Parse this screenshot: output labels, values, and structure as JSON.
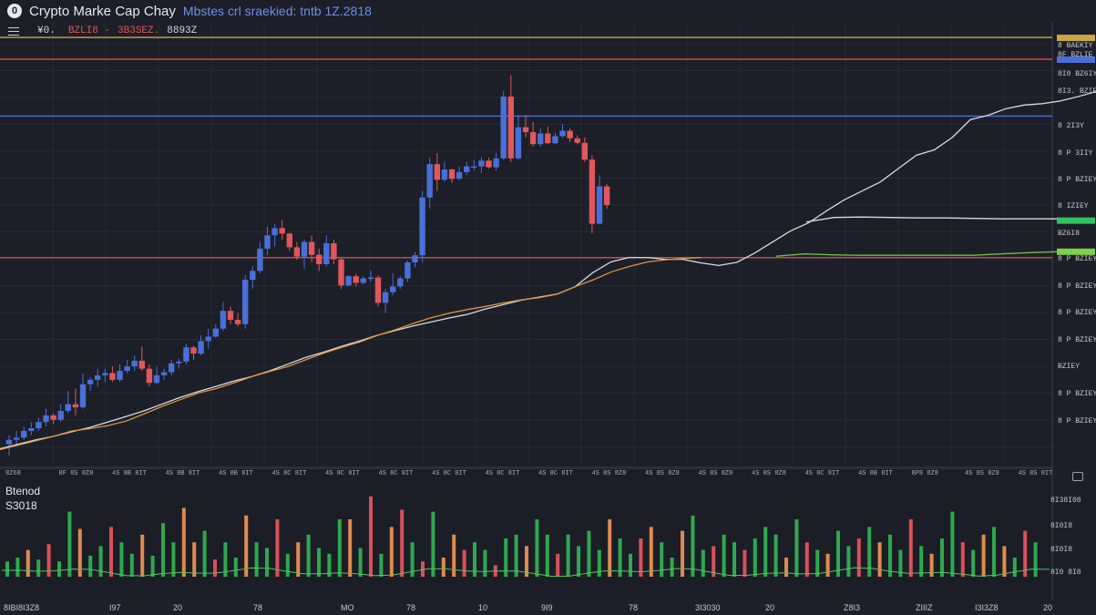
{
  "header": {
    "logo_glyph": "0",
    "title": "Crypto Marke Cap Chay",
    "subtitle": "Mbstes crl sraekied: tntb 1Z.2818"
  },
  "ohlc": {
    "a": "¥0.",
    "b": "BZLI8 -",
    "c": "3B3SEZ.",
    "d": "8893Z"
  },
  "volume_panel": {
    "label": "Btenod",
    "value": "S3018"
  },
  "colors": {
    "background": "#1c1f28",
    "up_candle": "#4a6fd8",
    "down_candle": "#e0575c",
    "ma_white": "#d9d9df",
    "ma_orange": "#d8924a",
    "ma_green": "#6fbf4a",
    "hline_red": "#e0443f",
    "hline_blue": "#4a6fd8",
    "hline_gold": "#c9a84a",
    "vol_green": "#2fa84f",
    "vol_red": "#d9505a",
    "vol_orange": "#e08a50"
  },
  "chart_data": {
    "type": "candlestick",
    "price_axis_ticks": [
      "8 BAEKIY",
      "8F BZLIE",
      "8I0 BZ6IY",
      "8I3. BZIEY",
      "8 2I3Y",
      "8 P 3IIY",
      "8 P BZIEY",
      "8 IZIEY",
      "BZ6I8",
      "8 P BZIEY",
      "8 P BZIEY",
      "8 P BZIEY",
      "8 P BZIEY",
      "BZIEY",
      "8 P BZIEY",
      "8 P BZIEY"
    ],
    "time_axis_ticks": [
      "8Z68",
      "8F 8S 8Z8",
      "4S 8B 8IT",
      "4S 8B 8IT",
      "4S 8B 8IT",
      "4S 8C 8IT",
      "4S 8C 8IT",
      "4S 8C 8IT",
      "4S 8C 8IT",
      "4S 8C 8IT",
      "4S 8C 8IT",
      "4S 8S 8Z8",
      "4S 8S 8Z8",
      "4S 8S 8Z8",
      "4S 8S 8Z8",
      "4S 8C 8IT",
      "4S 8B 8IT",
      "8P8 8Z8",
      "4S 8S 8Z8",
      "4S 8S 8IT"
    ],
    "bottom_axis_ticks": [
      "8IBI8I3Z8",
      "I97",
      "20",
      "78",
      "MO",
      "78",
      "10",
      "9I9",
      "78",
      "3I3030",
      "20",
      "Z8I3",
      "ZIIIZ",
      "I3I3Z8",
      "20"
    ],
    "volume_axis_ticks": [
      "8I38I08",
      "8I0I8",
      "8I0I8",
      "8I0 8I8"
    ],
    "y_range": [
      0,
      100
    ],
    "candles": [
      {
        "o": 5,
        "h": 7,
        "l": 2.5,
        "c": 6
      },
      {
        "o": 6,
        "h": 8,
        "l": 5,
        "c": 6.5
      },
      {
        "o": 6.5,
        "h": 9,
        "l": 6,
        "c": 8
      },
      {
        "o": 8,
        "h": 10,
        "l": 7,
        "c": 8.6
      },
      {
        "o": 8.6,
        "h": 11,
        "l": 8,
        "c": 10
      },
      {
        "o": 10,
        "h": 13,
        "l": 9,
        "c": 11.5
      },
      {
        "o": 11.5,
        "h": 12,
        "l": 9.5,
        "c": 10.5
      },
      {
        "o": 10.5,
        "h": 14,
        "l": 10,
        "c": 12.5
      },
      {
        "o": 12.5,
        "h": 17,
        "l": 12,
        "c": 14
      },
      {
        "o": 14,
        "h": 17.5,
        "l": 11.5,
        "c": 13.3
      },
      {
        "o": 13.3,
        "h": 21,
        "l": 13,
        "c": 18.5
      },
      {
        "o": 18.5,
        "h": 20,
        "l": 17,
        "c": 19.5
      },
      {
        "o": 19.5,
        "h": 22,
        "l": 18,
        "c": 20.5
      },
      {
        "o": 20.5,
        "h": 22,
        "l": 19,
        "c": 21
      },
      {
        "o": 21,
        "h": 22.5,
        "l": 19,
        "c": 19.5
      },
      {
        "o": 19.5,
        "h": 23,
        "l": 19,
        "c": 21.5
      },
      {
        "o": 21.5,
        "h": 24,
        "l": 21,
        "c": 22.5
      },
      {
        "o": 22.5,
        "h": 25,
        "l": 21.5,
        "c": 23.8
      },
      {
        "o": 23.8,
        "h": 27,
        "l": 21.5,
        "c": 22
      },
      {
        "o": 22,
        "h": 23,
        "l": 18,
        "c": 18.8
      },
      {
        "o": 18.8,
        "h": 22.5,
        "l": 18.5,
        "c": 20.5
      },
      {
        "o": 20.5,
        "h": 22,
        "l": 19.5,
        "c": 21.2
      },
      {
        "o": 21.2,
        "h": 24,
        "l": 20.5,
        "c": 23.2
      },
      {
        "o": 23.2,
        "h": 24.2,
        "l": 22,
        "c": 23.6
      },
      {
        "o": 23.6,
        "h": 27.5,
        "l": 23,
        "c": 26.8
      },
      {
        "o": 26.8,
        "h": 27.2,
        "l": 24,
        "c": 25.4
      },
      {
        "o": 25.4,
        "h": 29.5,
        "l": 25,
        "c": 28.2
      },
      {
        "o": 28.2,
        "h": 31,
        "l": 26.5,
        "c": 29.2
      },
      {
        "o": 29.2,
        "h": 32,
        "l": 29,
        "c": 31
      },
      {
        "o": 31,
        "h": 37,
        "l": 30.5,
        "c": 35
      },
      {
        "o": 35,
        "h": 36,
        "l": 32,
        "c": 33
      },
      {
        "o": 33,
        "h": 34.5,
        "l": 31.5,
        "c": 32
      },
      {
        "o": 32,
        "h": 43,
        "l": 31,
        "c": 42
      },
      {
        "o": 42,
        "h": 45,
        "l": 40,
        "c": 44
      },
      {
        "o": 44,
        "h": 50.5,
        "l": 43.5,
        "c": 49
      },
      {
        "o": 49,
        "h": 54,
        "l": 47.5,
        "c": 52
      },
      {
        "o": 52,
        "h": 54.5,
        "l": 49.5,
        "c": 53.6
      },
      {
        "o": 53.6,
        "h": 55.5,
        "l": 51,
        "c": 52.4
      },
      {
        "o": 52.4,
        "h": 52.5,
        "l": 48.5,
        "c": 49.3
      },
      {
        "o": 49.3,
        "h": 50.5,
        "l": 46.5,
        "c": 47.2
      },
      {
        "o": 47.2,
        "h": 51,
        "l": 44.5,
        "c": 50.5
      },
      {
        "o": 50.5,
        "h": 52,
        "l": 46,
        "c": 47.6
      },
      {
        "o": 47.6,
        "h": 49,
        "l": 44,
        "c": 45.5
      },
      {
        "o": 45.5,
        "h": 52,
        "l": 45,
        "c": 50.2
      },
      {
        "o": 50.2,
        "h": 51,
        "l": 45.5,
        "c": 46.6
      },
      {
        "o": 46.6,
        "h": 46.8,
        "l": 40,
        "c": 40.7
      },
      {
        "o": 40.7,
        "h": 43,
        "l": 40.5,
        "c": 42.8
      },
      {
        "o": 42.8,
        "h": 43.3,
        "l": 40.5,
        "c": 41.3
      },
      {
        "o": 41.3,
        "h": 42.8,
        "l": 41,
        "c": 42.3
      },
      {
        "o": 42.3,
        "h": 44,
        "l": 41.5,
        "c": 42.5
      },
      {
        "o": 42.5,
        "h": 43,
        "l": 36,
        "c": 36.8
      },
      {
        "o": 36.8,
        "h": 40,
        "l": 34.5,
        "c": 39.2
      },
      {
        "o": 39.2,
        "h": 43.5,
        "l": 38.5,
        "c": 40.5
      },
      {
        "o": 40.5,
        "h": 42.8,
        "l": 40,
        "c": 42.3
      },
      {
        "o": 42.3,
        "h": 46.3,
        "l": 41.5,
        "c": 45.9
      },
      {
        "o": 45.9,
        "h": 48.2,
        "l": 44.8,
        "c": 47.5
      },
      {
        "o": 47.5,
        "h": 62,
        "l": 46,
        "c": 60.5
      },
      {
        "o": 60.5,
        "h": 69.5,
        "l": 58,
        "c": 68
      },
      {
        "o": 68,
        "h": 70.5,
        "l": 62,
        "c": 64.5
      },
      {
        "o": 64.5,
        "h": 68.5,
        "l": 64,
        "c": 66.8
      },
      {
        "o": 66.8,
        "h": 67,
        "l": 63.8,
        "c": 64.7
      },
      {
        "o": 64.7,
        "h": 67.5,
        "l": 64.5,
        "c": 66.2
      },
      {
        "o": 66.2,
        "h": 68.5,
        "l": 65.5,
        "c": 67.5
      },
      {
        "o": 67.5,
        "h": 69,
        "l": 66.5,
        "c": 67.5
      },
      {
        "o": 67.5,
        "h": 69.5,
        "l": 66,
        "c": 68.8
      },
      {
        "o": 68.8,
        "h": 69.5,
        "l": 67,
        "c": 67.3
      },
      {
        "o": 67.3,
        "h": 70.5,
        "l": 66.5,
        "c": 69.3
      },
      {
        "o": 69.3,
        "h": 84.5,
        "l": 69,
        "c": 83.2
      },
      {
        "o": 83.2,
        "h": 88,
        "l": 68.5,
        "c": 69.3
      },
      {
        "o": 69.3,
        "h": 79,
        "l": 69,
        "c": 76.3
      },
      {
        "o": 76.3,
        "h": 79,
        "l": 74,
        "c": 75.2
      },
      {
        "o": 75.2,
        "h": 77.5,
        "l": 72,
        "c": 72.5
      },
      {
        "o": 72.5,
        "h": 76,
        "l": 72,
        "c": 74.9
      },
      {
        "o": 74.9,
        "h": 76.5,
        "l": 72.5,
        "c": 72.7
      },
      {
        "o": 72.7,
        "h": 75,
        "l": 72.5,
        "c": 74.3
      },
      {
        "o": 74.3,
        "h": 77,
        "l": 74,
        "c": 75.5
      },
      {
        "o": 75.5,
        "h": 76,
        "l": 73,
        "c": 73.8
      },
      {
        "o": 73.8,
        "h": 74.5,
        "l": 72.5,
        "c": 72.8
      },
      {
        "o": 72.8,
        "h": 74,
        "l": 68.5,
        "c": 69
      },
      {
        "o": 69,
        "h": 70,
        "l": 52.5,
        "c": 54.6
      },
      {
        "o": 54.6,
        "h": 65.5,
        "l": 54.5,
        "c": 63
      },
      {
        "o": 63,
        "h": 63.5,
        "l": 58,
        "c": 58.8
      }
    ],
    "moving_averages": [
      {
        "color": "white",
        "values": [
          4,
          5,
          6,
          6.8,
          7.8,
          8.8,
          10,
          11.2,
          12.5,
          14,
          15.5,
          16.8,
          18,
          19.2,
          20.2,
          21.5,
          23,
          24.5,
          25.7,
          27,
          28.2,
          29.5,
          30.6,
          31.6,
          32.5,
          33.4,
          34.2,
          35.4,
          36.4,
          37.4,
          38.1,
          38.8,
          40.4,
          43.6,
          46,
          47,
          47,
          46.6,
          46.6,
          45.8,
          45.2,
          45.9,
          48,
          50.5,
          53,
          54.8,
          57.5,
          60,
          62,
          64,
          67,
          70,
          71.2,
          74,
          78,
          79,
          80.5,
          81.3,
          81.6,
          82.2,
          83.2,
          84.3
        ]
      },
      {
        "color": "orange",
        "values": [
          3.8,
          4.8,
          5.8,
          6.8,
          8,
          8.5,
          9.2,
          10.2,
          11.8,
          13.5,
          15,
          16.5,
          17.5,
          18.8,
          20.2,
          21.4,
          22.5,
          24,
          25.5,
          26.8,
          28,
          29.5,
          30.8,
          32.2,
          33.5,
          34.5,
          35.3,
          36,
          36.8,
          37.5,
          38,
          38.8,
          40.5,
          42,
          43.8,
          45,
          46,
          46.5,
          46.8,
          47
        ]
      },
      {
        "color": "green",
        "values": [
          47.3,
          47.8,
          47.6,
          47.5,
          47.5,
          47.5,
          47.5,
          47.5,
          47.8,
          48.1,
          48.3
        ]
      },
      {
        "color": "white-flat",
        "values": [
          55,
          56,
          56.1,
          56,
          55.9,
          55.9,
          55.8,
          55.7,
          55.7,
          55.7
        ]
      }
    ],
    "horizontal_lines": [
      {
        "color": "gold",
        "value": 96.5
      },
      {
        "color": "red",
        "value": 91.6
      },
      {
        "color": "blue",
        "value": 78.8
      },
      {
        "color": "red",
        "value": 47.0
      }
    ],
    "volumes": [
      {
        "v": 8,
        "c": "green"
      },
      {
        "v": 10,
        "c": "green"
      },
      {
        "v": 14,
        "c": "orange"
      },
      {
        "v": 9,
        "c": "green"
      },
      {
        "v": 17,
        "c": "red"
      },
      {
        "v": 8,
        "c": "green"
      },
      {
        "v": 34,
        "c": "green"
      },
      {
        "v": 25,
        "c": "orange"
      },
      {
        "v": 11,
        "c": "green"
      },
      {
        "v": 16,
        "c": "green"
      },
      {
        "v": 26,
        "c": "red"
      },
      {
        "v": 18,
        "c": "green"
      },
      {
        "v": 12,
        "c": "green"
      },
      {
        "v": 22,
        "c": "orange"
      },
      {
        "v": 11,
        "c": "green"
      },
      {
        "v": 28,
        "c": "green"
      },
      {
        "v": 18,
        "c": "green"
      },
      {
        "v": 36,
        "c": "orange"
      },
      {
        "v": 18,
        "c": "orange"
      },
      {
        "v": 24,
        "c": "green"
      },
      {
        "v": 9,
        "c": "red"
      },
      {
        "v": 18,
        "c": "green"
      },
      {
        "v": 10,
        "c": "green"
      },
      {
        "v": 32,
        "c": "orange"
      },
      {
        "v": 18,
        "c": "green"
      },
      {
        "v": 15,
        "c": "green"
      },
      {
        "v": 30,
        "c": "red"
      },
      {
        "v": 12,
        "c": "green"
      },
      {
        "v": 18,
        "c": "orange"
      },
      {
        "v": 22,
        "c": "green"
      },
      {
        "v": 15,
        "c": "green"
      },
      {
        "v": 12,
        "c": "green"
      },
      {
        "v": 30,
        "c": "green"
      },
      {
        "v": 30,
        "c": "orange"
      },
      {
        "v": 15,
        "c": "green"
      },
      {
        "v": 42,
        "c": "red"
      },
      {
        "v": 12,
        "c": "green"
      },
      {
        "v": 26,
        "c": "orange"
      },
      {
        "v": 35,
        "c": "red"
      },
      {
        "v": 18,
        "c": "green"
      },
      {
        "v": 8,
        "c": "red"
      },
      {
        "v": 34,
        "c": "green"
      },
      {
        "v": 10,
        "c": "orange"
      },
      {
        "v": 22,
        "c": "orange"
      },
      {
        "v": 14,
        "c": "red"
      },
      {
        "v": 18,
        "c": "green"
      },
      {
        "v": 14,
        "c": "green"
      },
      {
        "v": 6,
        "c": "red"
      },
      {
        "v": 20,
        "c": "green"
      },
      {
        "v": 22,
        "c": "green"
      },
      {
        "v": 16,
        "c": "orange"
      },
      {
        "v": 30,
        "c": "green"
      },
      {
        "v": 22,
        "c": "green"
      },
      {
        "v": 12,
        "c": "red"
      },
      {
        "v": 22,
        "c": "green"
      },
      {
        "v": 16,
        "c": "green"
      },
      {
        "v": 24,
        "c": "green"
      },
      {
        "v": 14,
        "c": "green"
      },
      {
        "v": 30,
        "c": "orange"
      },
      {
        "v": 20,
        "c": "green"
      },
      {
        "v": 12,
        "c": "green"
      },
      {
        "v": 20,
        "c": "red"
      },
      {
        "v": 26,
        "c": "orange"
      },
      {
        "v": 18,
        "c": "green"
      },
      {
        "v": 10,
        "c": "green"
      },
      {
        "v": 24,
        "c": "orange"
      },
      {
        "v": 32,
        "c": "green"
      },
      {
        "v": 14,
        "c": "green"
      },
      {
        "v": 16,
        "c": "red"
      },
      {
        "v": 22,
        "c": "green"
      },
      {
        "v": 18,
        "c": "green"
      },
      {
        "v": 14,
        "c": "red"
      },
      {
        "v": 20,
        "c": "green"
      },
      {
        "v": 26,
        "c": "green"
      },
      {
        "v": 22,
        "c": "green"
      },
      {
        "v": 10,
        "c": "orange"
      },
      {
        "v": 30,
        "c": "green"
      },
      {
        "v": 18,
        "c": "red"
      },
      {
        "v": 14,
        "c": "green"
      },
      {
        "v": 12,
        "c": "orange"
      },
      {
        "v": 24,
        "c": "green"
      },
      {
        "v": 16,
        "c": "green"
      },
      {
        "v": 20,
        "c": "red"
      },
      {
        "v": 26,
        "c": "green"
      },
      {
        "v": 18,
        "c": "orange"
      },
      {
        "v": 22,
        "c": "green"
      },
      {
        "v": 14,
        "c": "green"
      },
      {
        "v": 30,
        "c": "red"
      },
      {
        "v": 16,
        "c": "green"
      },
      {
        "v": 12,
        "c": "orange"
      },
      {
        "v": 20,
        "c": "green"
      },
      {
        "v": 34,
        "c": "green"
      },
      {
        "v": 18,
        "c": "red"
      },
      {
        "v": 14,
        "c": "green"
      },
      {
        "v": 22,
        "c": "orange"
      },
      {
        "v": 26,
        "c": "green"
      },
      {
        "v": 16,
        "c": "orange"
      },
      {
        "v": 10,
        "c": "green"
      },
      {
        "v": 24,
        "c": "red"
      },
      {
        "v": 18,
        "c": "green"
      }
    ]
  }
}
